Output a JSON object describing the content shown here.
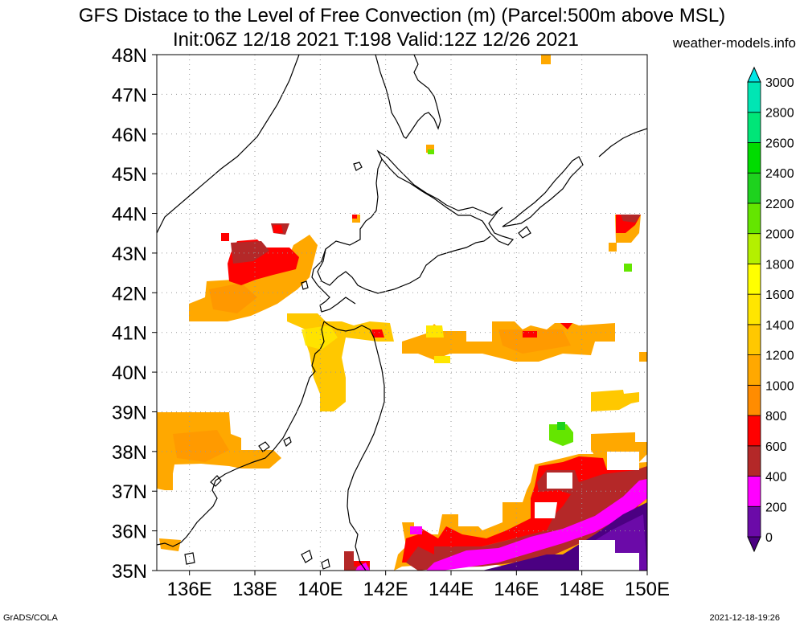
{
  "title": {
    "line1": "GFS Distace to the Level of Free Convection (m) (Parcel:500m above MSL)",
    "line2": "Init:06Z 12/18 2021 T:198 Valid:12Z 12/26 2021",
    "site": "weather-models.info"
  },
  "footer": {
    "left": "GrADS/COLA",
    "right": "2021-12-18-19:26"
  },
  "map": {
    "lon_range": [
      135,
      150
    ],
    "lat_range": [
      35,
      48
    ],
    "lon_labels": [
      "136E",
      "138E",
      "140E",
      "142E",
      "144E",
      "146E",
      "148E",
      "150E"
    ],
    "lon_values": [
      136,
      138,
      140,
      142,
      144,
      146,
      148,
      150
    ],
    "lat_labels": [
      "35N",
      "36N",
      "37N",
      "38N",
      "39N",
      "40N",
      "41N",
      "42N",
      "43N",
      "44N",
      "45N",
      "46N",
      "47N",
      "48N"
    ],
    "lat_values": [
      35,
      36,
      37,
      38,
      39,
      40,
      41,
      42,
      43,
      44,
      45,
      46,
      47,
      48
    ],
    "grid": true
  },
  "colorbar": {
    "labels": [
      "0",
      "200",
      "400",
      "600",
      "800",
      "1000",
      "1200",
      "1400",
      "1600",
      "1800",
      "2000",
      "2200",
      "2400",
      "2600",
      "2800",
      "3000"
    ],
    "colors": [
      "#6b0aa8",
      "#ff00ff",
      "#b42828",
      "#ff0000",
      "#ff8c00",
      "#ffa800",
      "#ffc800",
      "#ffe600",
      "#ffff00",
      "#b4f000",
      "#64e600",
      "#1ed21e",
      "#00dc00",
      "#00e678",
      "#00e6b4",
      "#00e6dc"
    ],
    "under_color": "#4b0082",
    "over_color": "#00e6e6"
  },
  "chart_data": {
    "type": "heatmap",
    "variable": "Distance to LFC (m)",
    "regions": [
      {
        "name": "japan-sea-west",
        "lon": [
          135.2,
          137.5
        ],
        "lat": [
          37.5,
          39.0
        ],
        "value": 900
      },
      {
        "name": "japan-sea-north-band",
        "lon": [
          136.0,
          139.5
        ],
        "lat": [
          41.2,
          42.5
        ],
        "value": 850
      },
      {
        "name": "off-hokkaido-southwest",
        "lon": [
          137.2,
          139.3
        ],
        "lat": [
          42.4,
          43.2
        ],
        "value": 500
      },
      {
        "name": "tsugaru-strait",
        "lon": [
          139.4,
          141.8
        ],
        "lat": [
          40.7,
          41.3
        ],
        "value": 1250
      },
      {
        "name": "pacific-41n-band",
        "lon": [
          142.5,
          149.0
        ],
        "lat": [
          40.3,
          41.2
        ],
        "value": 1050
      },
      {
        "name": "kuroshio-warm-band",
        "lon": [
          144.0,
          150.0
        ],
        "lat": [
          35.6,
          37.6
        ],
        "value": 350
      },
      {
        "name": "southeast-pacific",
        "lon": [
          145.8,
          150.0
        ],
        "lat": [
          35.0,
          36.6
        ],
        "value": 50
      }
    ]
  }
}
